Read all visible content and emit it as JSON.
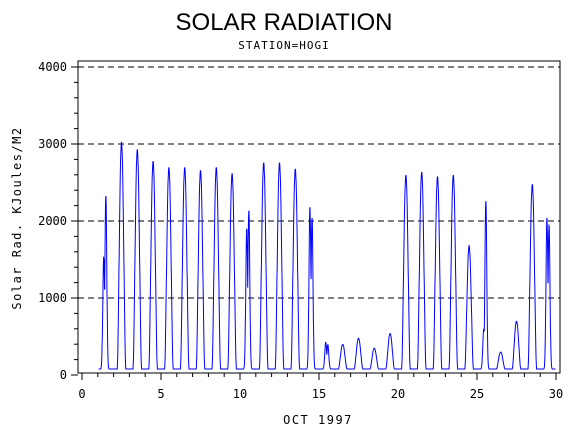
{
  "chart_data": {
    "type": "line",
    "title": "SOLAR RADIATION",
    "subtitle": "STATION=HOGI",
    "xlabel": "OCT 1997",
    "ylabel": "Solar Rad. KJoules/M2",
    "xlim": [
      0,
      30
    ],
    "ylim": [
      0,
      4000
    ],
    "x_ticks": [
      0,
      5,
      10,
      15,
      20,
      25,
      30
    ],
    "y_ticks": [
      0,
      1000,
      2000,
      3000,
      4000
    ],
    "grid": "horizontal-dashed",
    "line_color": "#0000ff",
    "daily_peaks": [
      {
        "day": 1.45,
        "peaks": [
          1550,
          2350
        ]
      },
      {
        "day": 2.5,
        "peaks": [
          2950
        ]
      },
      {
        "day": 3.5,
        "peaks": [
          2850
        ]
      },
      {
        "day": 4.5,
        "peaks": [
          2700
        ]
      },
      {
        "day": 5.5,
        "peaks": [
          2620
        ]
      },
      {
        "day": 6.5,
        "peaks": [
          2620
        ]
      },
      {
        "day": 7.5,
        "peaks": [
          2580
        ]
      },
      {
        "day": 8.5,
        "peaks": [
          2620
        ]
      },
      {
        "day": 9.5,
        "peaks": [
          2540
        ]
      },
      {
        "day": 10.5,
        "peaks": [
          1950,
          2150
        ]
      },
      {
        "day": 11.5,
        "peaks": [
          2680
        ]
      },
      {
        "day": 12.5,
        "peaks": [
          2680
        ]
      },
      {
        "day": 13.5,
        "peaks": [
          2600
        ]
      },
      {
        "day": 14.5,
        "peaks": [
          2250,
          2050
        ]
      },
      {
        "day": 15.5,
        "peaks": [
          370,
          330
        ]
      },
      {
        "day": 16.5,
        "peaks": [
          320
        ]
      },
      {
        "day": 17.5,
        "peaks": [
          400
        ]
      },
      {
        "day": 18.5,
        "peaks": [
          270
        ]
      },
      {
        "day": 19.5,
        "peaks": [
          460
        ]
      },
      {
        "day": 20.5,
        "peaks": [
          2520
        ]
      },
      {
        "day": 21.5,
        "peaks": [
          2560
        ]
      },
      {
        "day": 22.5,
        "peaks": [
          2500
        ]
      },
      {
        "day": 23.5,
        "peaks": [
          2520
        ]
      },
      {
        "day": 24.5,
        "peaks": [
          1600
        ]
      },
      {
        "day": 25.5,
        "peaks": [
          550,
          2280
        ]
      },
      {
        "day": 26.5,
        "peaks": [
          220
        ]
      },
      {
        "day": 27.5,
        "peaks": [
          620
        ]
      },
      {
        "day": 28.5,
        "peaks": [
          2400
        ]
      },
      {
        "day": 29.5,
        "peaks": [
          2100,
          1950
        ]
      }
    ]
  }
}
